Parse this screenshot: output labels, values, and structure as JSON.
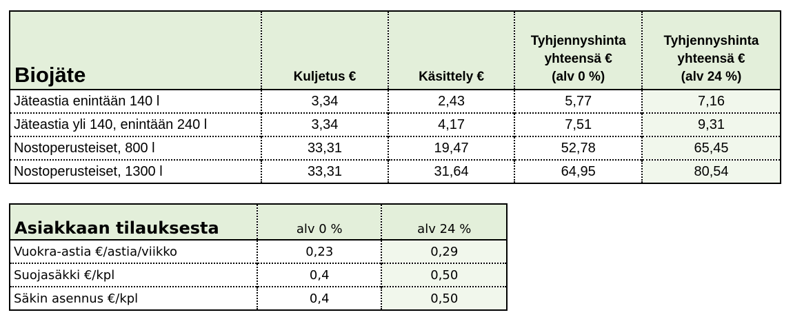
{
  "table1": {
    "title": "Biojäte",
    "col_kuljetus": "Kuljetus €",
    "col_kasittely": "Käsittely €",
    "col_total0": [
      "Tyhjennyshinta",
      "yhteensä €",
      "(alv 0 %)"
    ],
    "col_total24": [
      "Tyhjennyshinta",
      "yhteensä €",
      "(alv 24 %)"
    ],
    "rows": [
      {
        "label": "Jäteastia enintään 140 l",
        "kuljetus": "3,34",
        "kasittely": "2,43",
        "total0": "5,77",
        "total24": "7,16"
      },
      {
        "label": "Jäteastia yli 140, enintään 240 l",
        "kuljetus": "3,34",
        "kasittely": "4,17",
        "total0": "7,51",
        "total24": "9,31"
      },
      {
        "label": "Nostoperusteiset, 800 l",
        "kuljetus": "33,31",
        "kasittely": "19,47",
        "total0": "52,78",
        "total24": "65,45"
      },
      {
        "label": "Nostoperusteiset, 1300 l",
        "kuljetus": "33,31",
        "kasittely": "31,64",
        "total0": "64,95",
        "total24": "80,54"
      }
    ]
  },
  "table2": {
    "title": "Asiakkaan tilauksesta",
    "col_alv0": "alv 0 %",
    "col_alv24": "alv 24 %",
    "rows": [
      {
        "label": "Vuokra-astia €/astia/viikko",
        "alv0": "0,23",
        "alv24": "0,29"
      },
      {
        "label": "Suojasäkki €/kpl",
        "alv0": "0,4",
        "alv24": "0,50"
      },
      {
        "label": "Säkin asennus €/kpl",
        "alv0": "0,4",
        "alv24": "0,50"
      }
    ]
  }
}
